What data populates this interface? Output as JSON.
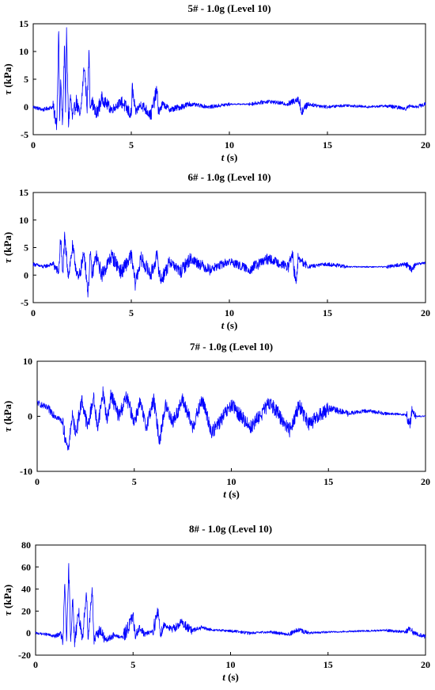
{
  "chart_data": [
    {
      "type": "line",
      "title": "5# - 1.0g (Level 10)",
      "xlabel_var": "t",
      "xlabel_unit": " (s)",
      "ylabel_var": "τ",
      "ylabel_unit": " (kPa)",
      "xlim": [
        0,
        20
      ],
      "ylim": [
        -5,
        15
      ],
      "xticks": [
        0,
        5,
        10,
        15,
        20
      ],
      "yticks": [
        -5,
        0,
        5,
        10,
        15
      ],
      "grid": false,
      "color": "#0000ff",
      "series": [
        {
          "x": [
            0,
            0.5,
            1.0,
            1.2,
            1.3,
            1.35,
            1.4,
            1.5,
            1.6,
            1.65,
            1.7,
            1.8,
            1.9,
            2.0,
            2.2,
            2.4,
            2.6,
            2.75,
            2.85,
            2.9,
            3.0,
            3.2,
            3.5,
            4.0,
            4.5,
            5.0,
            5.05,
            5.2,
            5.5,
            6.0,
            6.3,
            6.4,
            6.6,
            7.0,
            8.0,
            9.0,
            10.0,
            11.0,
            12.0,
            13.0,
            13.5,
            13.7,
            14.0,
            15.0,
            16.0,
            17.0,
            18.0,
            19.0,
            19.2,
            19.5,
            20.0
          ],
          "y": [
            0,
            -0.5,
            0,
            -3,
            14,
            -3,
            5,
            -3.5,
            12,
            0,
            13,
            -3,
            2,
            -2,
            1,
            -2,
            7.5,
            0,
            10.5,
            0,
            1,
            -1.5,
            1.5,
            -0.5,
            1,
            -1.5,
            3.5,
            -1,
            0.5,
            -1.5,
            3,
            -1,
            0.5,
            -0.5,
            0.5,
            0,
            0.5,
            0.5,
            1,
            0.5,
            1.5,
            -0.8,
            0.5,
            0,
            0.3,
            0,
            0.2,
            -0.3,
            0.2,
            0,
            0.5
          ]
        }
      ]
    },
    {
      "type": "line",
      "title": "6# - 1.0g (Level 10)",
      "xlabel_var": "t",
      "xlabel_unit": " (s)",
      "ylabel_var": "τ",
      "ylabel_unit": " (kPa)",
      "xlim": [
        0,
        20
      ],
      "ylim": [
        -5,
        15
      ],
      "xticks": [
        0,
        5,
        10,
        15,
        20
      ],
      "yticks": [
        -5,
        0,
        5,
        10,
        15
      ],
      "grid": false,
      "color": "#0000ff",
      "series": [
        {
          "x": [
            0,
            0.5,
            1.0,
            1.3,
            1.4,
            1.5,
            1.6,
            1.8,
            2.0,
            2.3,
            2.6,
            2.8,
            2.9,
            3.0,
            3.2,
            3.5,
            4.0,
            4.5,
            5.0,
            5.2,
            5.5,
            6.0,
            6.3,
            6.5,
            7.0,
            7.5,
            8.0,
            9.0,
            10.0,
            11.0,
            12.0,
            13.0,
            13.2,
            13.4,
            13.5,
            14.0,
            15.0,
            16.0,
            17.0,
            18.0,
            19.0,
            19.3,
            19.5,
            20.0
          ],
          "y": [
            2,
            1.5,
            2,
            0.5,
            7,
            0,
            6.5,
            0,
            5,
            -1,
            4,
            -3.5,
            4,
            0,
            3.5,
            0,
            3.5,
            0.5,
            3.5,
            -1.5,
            3,
            0,
            3.5,
            -1,
            2.5,
            0.5,
            3,
            1,
            2.5,
            1,
            3,
            1.5,
            4,
            -2,
            3,
            1.5,
            2,
            1.5,
            1.5,
            1.5,
            2,
            1,
            2,
            2.2
          ]
        }
      ]
    },
    {
      "type": "line",
      "title": "7# - 1.0g (Level 10)",
      "xlabel_var": "t",
      "xlabel_unit": " (s)",
      "ylabel_var": "τ",
      "ylabel_unit": " (kPa)",
      "xlim": [
        0,
        20
      ],
      "ylim": [
        -10,
        10
      ],
      "xticks": [
        0,
        5,
        10,
        15,
        20
      ],
      "yticks": [
        -10,
        0,
        10
      ],
      "grid": false,
      "color": "#0000ff",
      "series": [
        {
          "x": [
            0,
            0.5,
            1.0,
            1.3,
            1.5,
            1.6,
            1.8,
            2.0,
            2.3,
            2.6,
            2.9,
            3.1,
            3.4,
            3.6,
            3.8,
            4.2,
            4.6,
            5.0,
            5.3,
            5.6,
            6.0,
            6.3,
            6.6,
            7.0,
            7.5,
            8.0,
            8.5,
            9.0,
            10.0,
            11.0,
            12.0,
            13.0,
            13.5,
            14.0,
            15.0,
            16.0,
            17.0,
            18.0,
            19.0,
            19.2,
            19.3,
            19.5,
            20.0
          ],
          "y": [
            2.5,
            1.5,
            0,
            -1,
            -5,
            -6,
            0,
            -3,
            3,
            -2,
            3.5,
            -2,
            4.5,
            -1,
            4,
            0,
            3.5,
            -1,
            2.5,
            -2,
            3,
            -4.5,
            2,
            -1,
            3,
            -2,
            3,
            -3,
            2,
            -2,
            2.5,
            -2.5,
            2,
            -1.5,
            1.5,
            0.5,
            1,
            0.5,
            0.3,
            -1.5,
            1,
            0,
            0
          ]
        }
      ]
    },
    {
      "type": "line",
      "title": "8# - 1.0g (Level 10)",
      "xlabel_var": "t",
      "xlabel_unit": " (s)",
      "ylabel_var": "τ",
      "ylabel_unit": " (kPa)",
      "xlim": [
        0,
        20
      ],
      "ylim": [
        -20,
        80
      ],
      "xticks": [
        0,
        5,
        10,
        15,
        20
      ],
      "yticks": [
        -20,
        0,
        20,
        40,
        60,
        80
      ],
      "grid": false,
      "color": "#0000ff",
      "series": [
        {
          "x": [
            0,
            0.5,
            1.0,
            1.3,
            1.4,
            1.5,
            1.6,
            1.7,
            1.8,
            1.9,
            2.0,
            2.2,
            2.4,
            2.6,
            2.7,
            2.9,
            3.0,
            3.3,
            3.6,
            4.0,
            4.5,
            5.0,
            5.1,
            5.3,
            5.6,
            6.0,
            6.3,
            6.4,
            6.6,
            7.0,
            7.5,
            8.0,
            8.5,
            9.0,
            10.0,
            11.0,
            12.0,
            13.0,
            13.5,
            14.0,
            15.0,
            16.0,
            17.0,
            18.0,
            19.0,
            19.2,
            19.4,
            20.0
          ],
          "y": [
            0,
            -1,
            -3,
            0,
            -10,
            45,
            -8,
            60,
            -5,
            30,
            -8,
            20,
            -10,
            40,
            -5,
            42,
            -7,
            3,
            -7,
            -2,
            -4,
            15,
            -3,
            5,
            -1,
            2,
            20,
            -1,
            8,
            3,
            10,
            2,
            5,
            3,
            2,
            0,
            1,
            -1,
            3,
            0,
            1,
            1.5,
            2,
            2.5,
            1,
            5,
            0,
            -3
          ]
        }
      ]
    }
  ]
}
